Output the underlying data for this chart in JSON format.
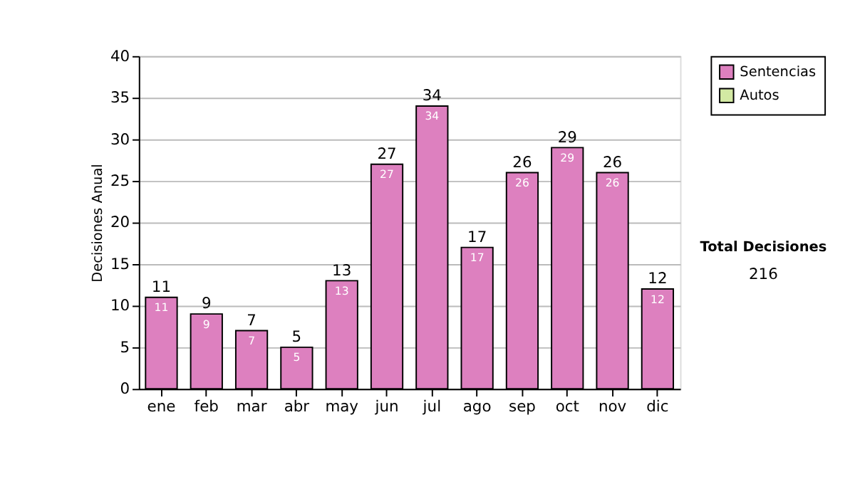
{
  "chart_data": {
    "type": "bar",
    "ylabel": "Decisiones Anual",
    "categories": [
      "ene",
      "feb",
      "mar",
      "abr",
      "may",
      "jun",
      "jul",
      "ago",
      "sep",
      "oct",
      "nov",
      "dic"
    ],
    "series": [
      {
        "name": "Sentencias",
        "color": "#dd80bf",
        "values": [
          11,
          9,
          7,
          5,
          13,
          27,
          34,
          17,
          26,
          29,
          26,
          12
        ]
      },
      {
        "name": "Autos",
        "color": "#d3e9a3",
        "values": [
          null,
          null,
          null,
          null,
          null,
          null,
          null,
          null,
          null,
          null,
          null,
          null
        ]
      }
    ],
    "data_labels": true,
    "totals": [
      "11",
      "9",
      "7",
      "5",
      "13",
      "27",
      "34",
      "17",
      "26",
      "29",
      "26",
      "12"
    ],
    "ylim": [
      0,
      40
    ],
    "yticks": [
      0,
      5,
      10,
      15,
      20,
      25,
      30,
      35,
      40
    ],
    "grid": "y",
    "legend": "right",
    "annotations": [
      "Total Decisiones",
      "216"
    ]
  }
}
